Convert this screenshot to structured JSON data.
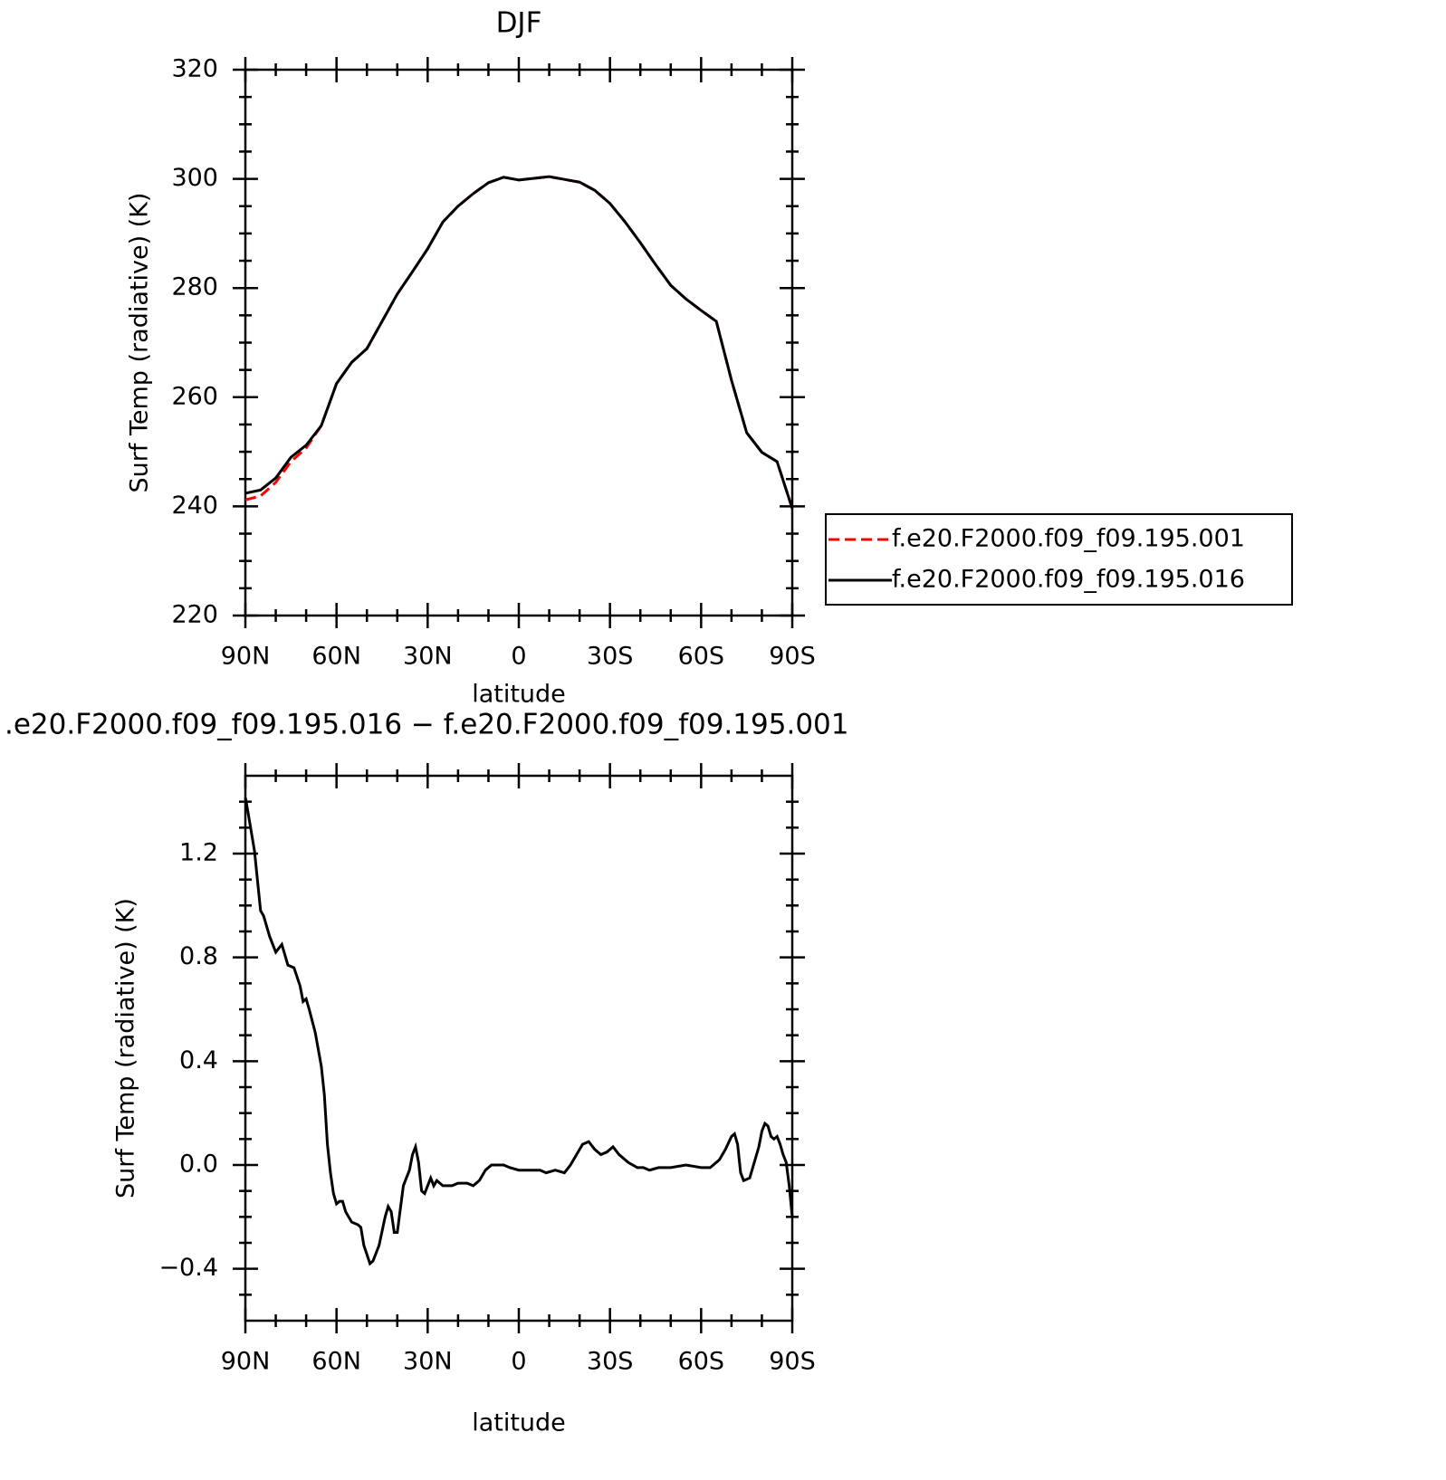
{
  "chart_data": [
    {
      "type": "line",
      "title": "DJF",
      "xlabel": "latitude",
      "ylabel": "Surf Temp (radiative) (K)",
      "x": [
        90,
        85,
        80,
        75,
        70,
        65,
        60,
        55,
        50,
        45,
        40,
        35,
        30,
        25,
        20,
        15,
        10,
        5,
        0,
        -5,
        -10,
        -15,
        -20,
        -25,
        -30,
        -35,
        -40,
        -45,
        -50,
        -55,
        -60,
        -65,
        -70,
        -75,
        -80,
        -85,
        -90
      ],
      "series": [
        {
          "name": "f.e20.F2000.f09_f09.195.001",
          "color": "#ff0000",
          "dash": true,
          "values": [
            241.2,
            241.9,
            244.4,
            248.2,
            250.7,
            254.8,
            262.5,
            266.4,
            268.9,
            273.9,
            278.9,
            283.0,
            287.2,
            292.1,
            295.0,
            297.3,
            299.3,
            300.3,
            299.8,
            300.1,
            300.4,
            299.9,
            299.4,
            297.9,
            295.5,
            292.1,
            288.3,
            284.3,
            280.5,
            278.0,
            275.9,
            273.9,
            263.1,
            253.5,
            249.9,
            248.2,
            239.6
          ]
        },
        {
          "name": "f.e20.F2000.f09_f09.195.016",
          "color": "#000000",
          "dash": false,
          "values": [
            242.4,
            243.0,
            245.2,
            249.0,
            251.2,
            254.8,
            262.5,
            266.4,
            268.9,
            273.9,
            278.9,
            283.0,
            287.2,
            292.1,
            295.0,
            297.3,
            299.3,
            300.3,
            299.8,
            300.1,
            300.4,
            299.9,
            299.4,
            297.9,
            295.5,
            292.1,
            288.3,
            284.3,
            280.5,
            278.0,
            275.9,
            273.9,
            263.1,
            253.5,
            249.9,
            248.2,
            239.6
          ]
        }
      ],
      "xlim": [
        90,
        -90
      ],
      "xticks": [
        {
          "value": 90,
          "label": "90N"
        },
        {
          "value": 60,
          "label": "60N"
        },
        {
          "value": 30,
          "label": "30N"
        },
        0,
        {
          "value": -30,
          "label": "30S"
        },
        {
          "value": -60,
          "label": "60S"
        },
        {
          "value": -90,
          "label": "90S"
        }
      ],
      "ylim": [
        220,
        320
      ],
      "yticks": [
        220,
        240,
        260,
        280,
        300,
        320
      ],
      "legend": "right"
    },
    {
      "type": "line",
      "title": ".e20.F2000.f09_f09.195.016 − f.e20.F2000.f09_f09.195.001",
      "xlabel": "latitude",
      "ylabel": "Surf Temp (radiative) (K)",
      "x": [
        90,
        89,
        87,
        85,
        84,
        82,
        80,
        78,
        76,
        74,
        72,
        71,
        70,
        69,
        67,
        65,
        64,
        63,
        62,
        61,
        60,
        59,
        58,
        57,
        55,
        53,
        52,
        51,
        49,
        48,
        46,
        44,
        43,
        42,
        41,
        40,
        39,
        38,
        37,
        36,
        35,
        34,
        33,
        32,
        31,
        30,
        29,
        28,
        27,
        25,
        22,
        20,
        17,
        15,
        13,
        11,
        9,
        7,
        5,
        3,
        0,
        -3,
        -5,
        -7,
        -9,
        -12,
        -15,
        -17,
        -19,
        -21,
        -23,
        -25,
        -27,
        -29,
        -31,
        -33,
        -36,
        -39,
        -41,
        -43,
        -46,
        -50,
        -55,
        -60,
        -63,
        -66,
        -68,
        -70,
        -71,
        -72,
        -73,
        -74,
        -76,
        -77,
        -79,
        -80,
        -81,
        -82,
        -83,
        -84,
        -85,
        -86,
        -87,
        -88,
        -89,
        -90
      ],
      "series": [
        {
          "color": "#000000",
          "values": [
            1.416,
            1.35,
            1.21,
            0.98,
            0.96,
            0.88,
            0.82,
            0.85,
            0.77,
            0.76,
            0.69,
            0.63,
            0.64,
            0.6,
            0.51,
            0.38,
            0.27,
            0.08,
            -0.03,
            -0.11,
            -0.15,
            -0.14,
            -0.14,
            -0.18,
            -0.22,
            -0.23,
            -0.24,
            -0.31,
            -0.38,
            -0.37,
            -0.31,
            -0.2,
            -0.16,
            -0.18,
            -0.26,
            -0.26,
            -0.17,
            -0.08,
            -0.05,
            -0.02,
            0.04,
            0.07,
            0.01,
            -0.1,
            -0.11,
            -0.08,
            -0.05,
            -0.08,
            -0.06,
            -0.08,
            -0.08,
            -0.07,
            -0.07,
            -0.08,
            -0.06,
            -0.02,
            0.0,
            0.0,
            0.0,
            -0.01,
            -0.02,
            -0.02,
            -0.02,
            -0.02,
            -0.03,
            -0.02,
            -0.03,
            0.0,
            0.04,
            0.08,
            0.09,
            0.06,
            0.04,
            0.05,
            0.07,
            0.04,
            0.01,
            -0.01,
            -0.01,
            -0.02,
            -0.01,
            -0.01,
            0.0,
            -0.01,
            -0.01,
            0.02,
            0.06,
            0.11,
            0.12,
            0.08,
            -0.03,
            -0.06,
            -0.05,
            -0.01,
            0.07,
            0.13,
            0.16,
            0.15,
            0.11,
            0.1,
            0.11,
            0.08,
            0.04,
            0.01,
            -0.08,
            -0.2
          ]
        }
      ],
      "xlim": [
        90,
        -90
      ],
      "xticks": [
        {
          "value": 90,
          "label": "90N"
        },
        {
          "value": 60,
          "label": "60N"
        },
        {
          "value": 30,
          "label": "30N"
        },
        0,
        {
          "value": -30,
          "label": "30S"
        },
        {
          "value": -60,
          "label": "60S"
        },
        {
          "value": -90,
          "label": "90S"
        }
      ],
      "ylim": [
        -0.6,
        1.5
      ],
      "yticks": [
        {
          "value": -0.4,
          "label": "−0.4"
        },
        {
          "value": 0,
          "label": "0.0"
        },
        0.4,
        0.8,
        1.2
      ]
    }
  ]
}
